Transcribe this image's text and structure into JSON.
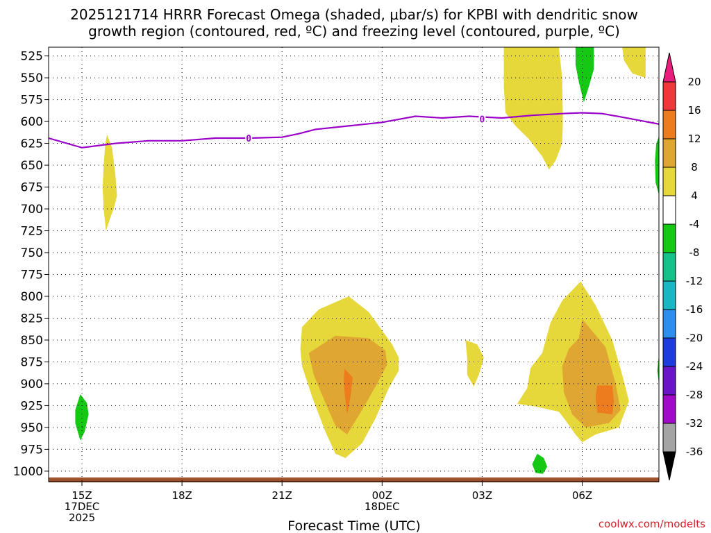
{
  "chart_data": {
    "type": "contour",
    "title_line1": "2025121714 HRRR Forecast Omega (shaded, μbar/s) for KPBI with dendritic snow",
    "title_line2": "growth region (contoured, red, ºC) and freezing level (contoured, purple, ºC)",
    "xlabel": "Forecast Time (UTC)",
    "credit": "coolwx.com/modelts",
    "x_ticks": [
      {
        "hour": 0,
        "lines": [
          "15Z",
          "17DEC",
          "2025"
        ]
      },
      {
        "hour": 3,
        "lines": [
          "18Z"
        ]
      },
      {
        "hour": 6,
        "lines": [
          "21Z"
        ]
      },
      {
        "hour": 9,
        "lines": [
          "00Z",
          "18DEC"
        ]
      },
      {
        "hour": 12,
        "lines": [
          "03Z"
        ]
      },
      {
        "hour": 15,
        "lines": [
          "06Z"
        ]
      }
    ],
    "xlim_hours": [
      -1,
      17.3
    ],
    "y_levels_hpa": [
      "525",
      "550",
      "575",
      "600",
      "625",
      "650",
      "675",
      "700",
      "725",
      "750",
      "775",
      "800",
      "825",
      "850",
      "875",
      "900",
      "925",
      "950",
      "975",
      "1000"
    ],
    "ylim_hpa": [
      515,
      1012
    ],
    "colorbar": {
      "tick_labels": [
        "20",
        "16",
        "12",
        "8",
        "4",
        "-4",
        "-8",
        "-12",
        "-16",
        "-20",
        "-24",
        "-28",
        "-32",
        "-36"
      ],
      "bounds": [
        24,
        20,
        16,
        12,
        8,
        4,
        -4,
        -8,
        -12,
        -16,
        -20,
        -24,
        -28,
        -32,
        -36,
        -40
      ],
      "colors": [
        "#ea1d7c",
        "#f0383a",
        "#ec7c1d",
        "#e0a632",
        "#e6d83a",
        "#ffffff",
        "#14c814",
        "#15c28a",
        "#19b7c4",
        "#2d8ef0",
        "#1e3cdc",
        "#6a14c8",
        "#a00ac8",
        "#a4a4a4",
        "#000000"
      ]
    },
    "omega_regions": [
      {
        "level": "4",
        "color": "#e6d83a",
        "points": [
          [
            0.75,
            615
          ],
          [
            0.9,
            630
          ],
          [
            1.0,
            660
          ],
          [
            1.05,
            685
          ],
          [
            0.95,
            700
          ],
          [
            0.85,
            710
          ],
          [
            0.72,
            725
          ],
          [
            0.65,
            700
          ],
          [
            0.62,
            675
          ],
          [
            0.65,
            650
          ],
          [
            0.7,
            625
          ]
        ]
      },
      {
        "level": "4",
        "color": "#e6d83a",
        "points": [
          [
            12.65,
            515
          ],
          [
            14.3,
            515
          ],
          [
            14.4,
            550
          ],
          [
            14.42,
            600
          ],
          [
            14.4,
            625
          ],
          [
            14.2,
            645
          ],
          [
            14.0,
            655
          ],
          [
            13.8,
            640
          ],
          [
            13.4,
            620
          ],
          [
            13.0,
            605
          ],
          [
            12.7,
            590
          ],
          [
            12.65,
            560
          ]
        ]
      },
      {
        "level": "4",
        "color": "#e6d83a",
        "points": [
          [
            16.2,
            515
          ],
          [
            16.9,
            515
          ],
          [
            16.9,
            550
          ],
          [
            16.5,
            545
          ],
          [
            16.25,
            530
          ]
        ]
      },
      {
        "level": "4",
        "color": "#e6d83a",
        "points": [
          [
            6.6,
            835
          ],
          [
            7.1,
            815
          ],
          [
            8.0,
            800
          ],
          [
            8.6,
            818
          ],
          [
            9.3,
            855
          ],
          [
            9.5,
            870
          ],
          [
            9.5,
            885
          ],
          [
            9.2,
            905
          ],
          [
            8.8,
            940
          ],
          [
            8.4,
            968
          ],
          [
            7.9,
            985
          ],
          [
            7.6,
            980
          ],
          [
            7.3,
            955
          ],
          [
            6.9,
            915
          ],
          [
            6.6,
            880
          ],
          [
            6.55,
            860
          ]
        ]
      },
      {
        "level": "4",
        "color": "#e6d83a",
        "points": [
          [
            11.5,
            850
          ],
          [
            11.85,
            855
          ],
          [
            12.05,
            870
          ],
          [
            11.9,
            890
          ],
          [
            11.75,
            903
          ],
          [
            11.55,
            890
          ],
          [
            11.55,
            870
          ]
        ]
      },
      {
        "level": "4",
        "color": "#e6d83a",
        "points": [
          [
            13.05,
            923
          ],
          [
            13.35,
            905
          ],
          [
            13.45,
            882
          ],
          [
            13.8,
            865
          ],
          [
            14.05,
            830
          ],
          [
            14.4,
            805
          ],
          [
            14.95,
            783
          ],
          [
            15.4,
            810
          ],
          [
            15.9,
            850
          ],
          [
            16.2,
            890
          ],
          [
            16.4,
            920
          ],
          [
            16.1,
            950
          ],
          [
            15.4,
            958
          ],
          [
            15.0,
            967
          ],
          [
            14.8,
            958
          ],
          [
            14.5,
            942
          ],
          [
            14.3,
            932
          ],
          [
            13.6,
            926
          ]
        ]
      },
      {
        "level": "8",
        "color": "#e0a632",
        "points": [
          [
            6.8,
            865
          ],
          [
            7.6,
            845
          ],
          [
            8.6,
            848
          ],
          [
            9.1,
            862
          ],
          [
            9.15,
            878
          ],
          [
            8.85,
            900
          ],
          [
            8.4,
            930
          ],
          [
            7.95,
            958
          ],
          [
            7.6,
            948
          ],
          [
            7.3,
            922
          ],
          [
            6.95,
            890
          ]
        ]
      },
      {
        "level": "8",
        "color": "#e0a632",
        "points": [
          [
            14.4,
            880
          ],
          [
            14.6,
            860
          ],
          [
            14.9,
            848
          ],
          [
            15.0,
            826
          ],
          [
            15.7,
            858
          ],
          [
            16.0,
            900
          ],
          [
            16.15,
            930
          ],
          [
            15.8,
            945
          ],
          [
            15.1,
            950
          ],
          [
            14.7,
            935
          ],
          [
            14.45,
            910
          ]
        ]
      },
      {
        "level": "12",
        "color": "#ec7c1d",
        "points": [
          [
            7.88,
            883
          ],
          [
            8.12,
            893
          ],
          [
            8.05,
            915
          ],
          [
            7.95,
            935
          ],
          [
            7.88,
            912
          ],
          [
            7.85,
            895
          ]
        ]
      },
      {
        "level": "12",
        "color": "#ec7c1d",
        "points": [
          [
            15.45,
            902
          ],
          [
            15.9,
            902
          ],
          [
            15.95,
            920
          ],
          [
            15.9,
            935
          ],
          [
            15.45,
            933
          ],
          [
            15.4,
            915
          ]
        ]
      },
      {
        "level": "-4",
        "color": "#14c814",
        "points": [
          [
            -0.05,
            912
          ],
          [
            0.15,
            922
          ],
          [
            0.2,
            935
          ],
          [
            0.08,
            955
          ],
          [
            -0.05,
            965
          ],
          [
            -0.2,
            945
          ],
          [
            -0.2,
            930
          ]
        ]
      },
      {
        "level": "-4",
        "color": "#14c814",
        "points": [
          [
            13.65,
            980
          ],
          [
            13.85,
            985
          ],
          [
            13.95,
            995
          ],
          [
            13.82,
            1003
          ],
          [
            13.6,
            1002
          ],
          [
            13.5,
            992
          ]
        ]
      },
      {
        "level": "-4",
        "color": "#14c814",
        "points": [
          [
            14.8,
            515
          ],
          [
            15.35,
            515
          ],
          [
            15.35,
            540
          ],
          [
            15.2,
            560
          ],
          [
            15.05,
            578
          ],
          [
            14.9,
            555
          ],
          [
            14.8,
            535
          ]
        ]
      },
      {
        "level": "-4",
        "color": "#14c814",
        "points": [
          [
            17.3,
            617
          ],
          [
            17.3,
            684
          ],
          [
            17.2,
            670
          ],
          [
            17.18,
            645
          ],
          [
            17.22,
            625
          ]
        ]
      },
      {
        "level": "-4",
        "color": "#14c814",
        "points": [
          [
            17.3,
            867
          ],
          [
            17.3,
            900
          ],
          [
            17.25,
            885
          ]
        ]
      }
    ],
    "freezing_level": {
      "label": "0",
      "label_at": [
        [
          5.0,
          619
        ],
        [
          12.0,
          597
        ]
      ],
      "points": [
        [
          -1.0,
          619
        ],
        [
          0.0,
          630
        ],
        [
          1.0,
          625
        ],
        [
          2.0,
          622
        ],
        [
          3.0,
          622
        ],
        [
          4.0,
          619
        ],
        [
          5.0,
          619
        ],
        [
          6.0,
          618
        ],
        [
          6.5,
          614
        ],
        [
          7.0,
          609
        ],
        [
          8.0,
          605
        ],
        [
          9.0,
          601
        ],
        [
          10.0,
          594
        ],
        [
          10.8,
          596
        ],
        [
          11.6,
          594
        ],
        [
          12.6,
          596
        ],
        [
          13.5,
          593
        ],
        [
          14.4,
          591
        ],
        [
          15.0,
          590
        ],
        [
          15.6,
          591
        ],
        [
          16.2,
          595
        ],
        [
          17.3,
          603
        ]
      ]
    },
    "ground_band_color": "#a0522d"
  }
}
